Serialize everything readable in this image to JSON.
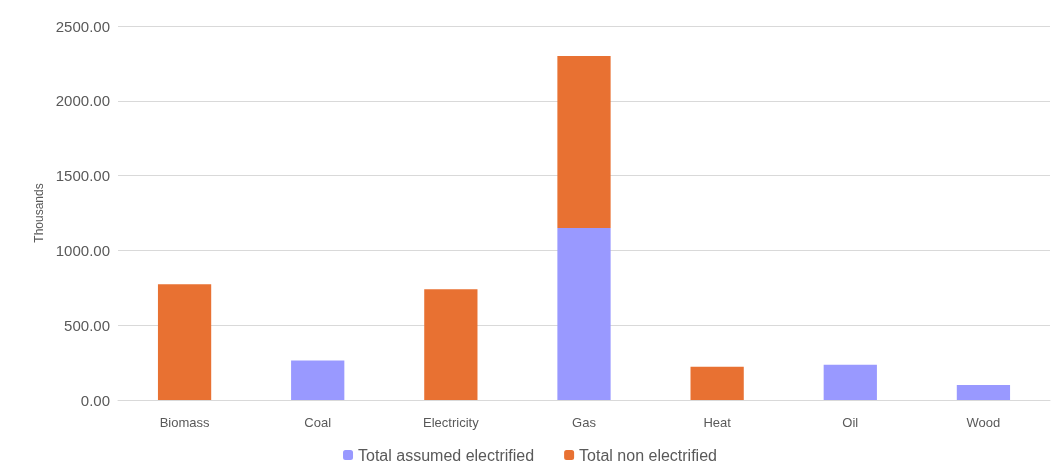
{
  "chart_data": {
    "type": "bar",
    "stacked": true,
    "ylabel": "Thousands",
    "categories": [
      "Biomass",
      "Coal",
      "Electricity",
      "Gas",
      "Heat",
      "Oil",
      "Wood"
    ],
    "series": [
      {
        "name": "Total assumed electrified",
        "color": "#9999ff",
        "values": [
          null,
          264,
          null,
          1149,
          null,
          236,
          100
        ]
      },
      {
        "name": "Total non electrified",
        "color": "#e87132",
        "values": [
          773,
          null,
          740,
          1150,
          223,
          null,
          null
        ]
      }
    ],
    "ylim": [
      0,
      2500
    ],
    "yticks": [
      {
        "value": 0,
        "label": "0.00"
      },
      {
        "value": 500,
        "label": "500.00"
      },
      {
        "value": 1000,
        "label": "1000.00"
      },
      {
        "value": 1500,
        "label": "1500.00"
      },
      {
        "value": 2000,
        "label": "2000.00"
      },
      {
        "value": 2500,
        "label": "2500.00"
      }
    ],
    "grid": "y",
    "legend": "bottom"
  }
}
